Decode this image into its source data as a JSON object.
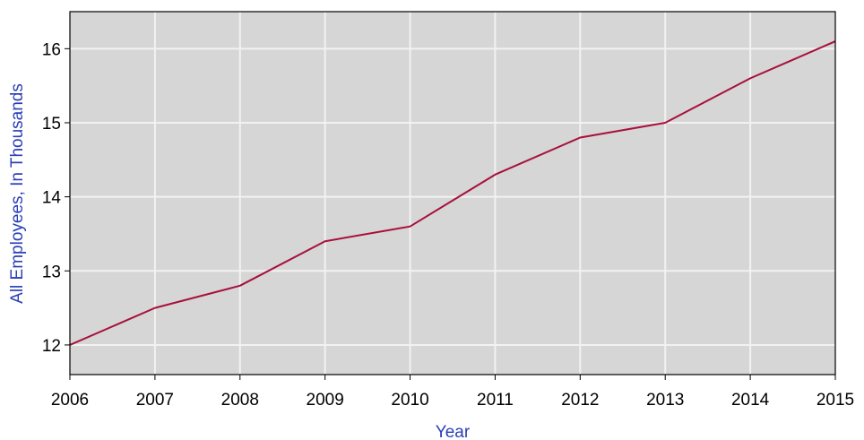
{
  "chart_data": {
    "type": "line",
    "title": "",
    "xlabel": "Year",
    "ylabel": "All Employees, In Thousands",
    "x": [
      2006,
      2007,
      2008,
      2009,
      2010,
      2011,
      2012,
      2013,
      2014,
      2015
    ],
    "series": [
      {
        "values": [
          12.0,
          12.5,
          12.8,
          13.4,
          13.6,
          14.3,
          14.8,
          15.0,
          15.6,
          16.1
        ]
      }
    ],
    "xlim": [
      2006,
      2015
    ],
    "ylim": [
      11.6,
      16.5
    ],
    "x_ticks": [
      "2006",
      "2007",
      "2008",
      "2009",
      "2010",
      "2011",
      "2012",
      "2013",
      "2014",
      "2015"
    ],
    "y_ticks": [
      "12",
      "13",
      "14",
      "15",
      "16"
    ],
    "y_tick_values": [
      12,
      13,
      14,
      15,
      16
    ],
    "grid": true,
    "legend": "none",
    "colors": {
      "plot_background": "#d6d6d6",
      "gridline": "#f2f2f2",
      "line": "#a8103a",
      "axis_title": "#2a3fb5",
      "tick_text": "#000000"
    }
  }
}
